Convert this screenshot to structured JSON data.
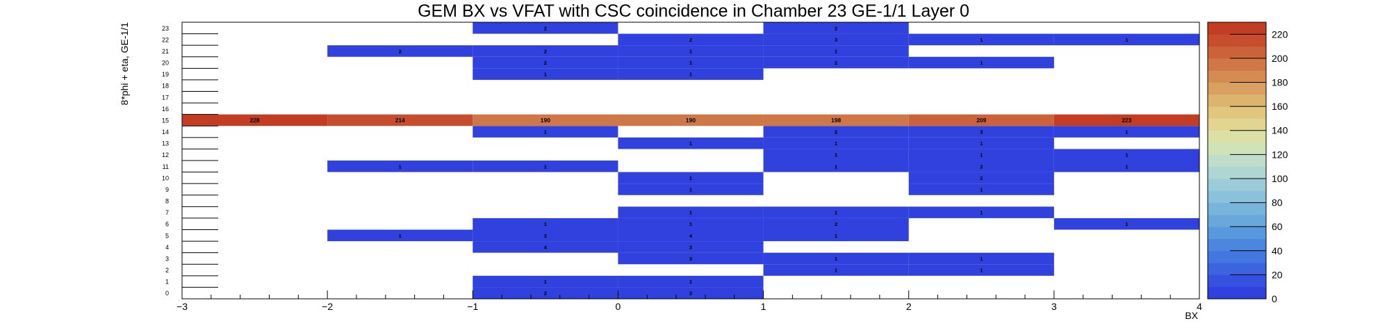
{
  "chart_data": {
    "type": "heatmap",
    "title": "GEM BX vs VFAT with CSC coincidence in Chamber 23 GE-1/1 Layer 0",
    "xlabel": "BX",
    "ylabel": "8*phi + eta, GE-1/1",
    "xlim": [
      -3,
      4
    ],
    "ylim": [
      0,
      24
    ],
    "x_bins": [
      [
        -3,
        -2
      ],
      [
        -2,
        -1
      ],
      [
        -1,
        0
      ],
      [
        0,
        1
      ],
      [
        1,
        2
      ],
      [
        2,
        3
      ],
      [
        3,
        4
      ]
    ],
    "y_bins": [
      0,
      1,
      2,
      3,
      4,
      5,
      6,
      7,
      8,
      9,
      10,
      11,
      12,
      13,
      14,
      15,
      16,
      17,
      18,
      19,
      20,
      21,
      22,
      23
    ],
    "x_ticks": [
      "-3",
      "-2",
      "-1",
      "0",
      "1",
      "2",
      "3",
      "4"
    ],
    "colorbar_ticks": [
      "0",
      "20",
      "40",
      "60",
      "80",
      "100",
      "120",
      "140",
      "160",
      "180",
      "200",
      "220"
    ],
    "zlim": [
      0,
      230
    ],
    "palette": [
      "#3041dd",
      "#3650df",
      "#3c63e0",
      "#4476e0",
      "#4c86df",
      "#5898dc",
      "#6aa7db",
      "#79b5da",
      "#8bc1da",
      "#9dccd8",
      "#aed6d3",
      "#c0ddcb",
      "#d0e2b8",
      "#dde0a4",
      "#e2d590",
      "#e1c77e",
      "#ddb46e",
      "#d9a061",
      "#d48c53",
      "#cf7747",
      "#cb6239",
      "#c64d2e",
      "#c33d22"
    ],
    "cells": [
      {
        "x": -0.5,
        "y": 0,
        "value": 2
      },
      {
        "x": 0.5,
        "y": 0,
        "value": 2
      },
      {
        "x": -0.5,
        "y": 1,
        "value": 1
      },
      {
        "x": 0.5,
        "y": 1,
        "value": 1
      },
      {
        "x": 1.5,
        "y": 2,
        "value": 1
      },
      {
        "x": 2.5,
        "y": 2,
        "value": 1
      },
      {
        "x": 0.5,
        "y": 3,
        "value": 3
      },
      {
        "x": 1.5,
        "y": 3,
        "value": 1
      },
      {
        "x": 2.5,
        "y": 3,
        "value": 1
      },
      {
        "x": -0.5,
        "y": 4,
        "value": 4
      },
      {
        "x": 0.5,
        "y": 4,
        "value": 3
      },
      {
        "x": -1.5,
        "y": 5,
        "value": 1
      },
      {
        "x": -0.5,
        "y": 5,
        "value": 3
      },
      {
        "x": 0.5,
        "y": 5,
        "value": 4
      },
      {
        "x": 1.5,
        "y": 5,
        "value": 1
      },
      {
        "x": -0.5,
        "y": 6,
        "value": 1
      },
      {
        "x": 0.5,
        "y": 6,
        "value": 1
      },
      {
        "x": 1.5,
        "y": 6,
        "value": 2
      },
      {
        "x": 3.5,
        "y": 6,
        "value": 1
      },
      {
        "x": 0.5,
        "y": 7,
        "value": 1
      },
      {
        "x": 1.5,
        "y": 7,
        "value": 1
      },
      {
        "x": 2.5,
        "y": 7,
        "value": 1
      },
      {
        "x": 0.5,
        "y": 9,
        "value": 1
      },
      {
        "x": 2.5,
        "y": 9,
        "value": 1
      },
      {
        "x": 0.5,
        "y": 10,
        "value": 1
      },
      {
        "x": 2.5,
        "y": 10,
        "value": 2
      },
      {
        "x": -1.5,
        "y": 11,
        "value": 1
      },
      {
        "x": -0.5,
        "y": 11,
        "value": 1
      },
      {
        "x": 1.5,
        "y": 11,
        "value": 1
      },
      {
        "x": 2.5,
        "y": 11,
        "value": 2
      },
      {
        "x": 3.5,
        "y": 11,
        "value": 1
      },
      {
        "x": 1.5,
        "y": 12,
        "value": 1
      },
      {
        "x": 2.5,
        "y": 12,
        "value": 1
      },
      {
        "x": 3.5,
        "y": 12,
        "value": 1
      },
      {
        "x": 0.5,
        "y": 13,
        "value": 1
      },
      {
        "x": 1.5,
        "y": 13,
        "value": 1
      },
      {
        "x": 2.5,
        "y": 13,
        "value": 1
      },
      {
        "x": -0.5,
        "y": 14,
        "value": 1
      },
      {
        "x": 1.5,
        "y": 14,
        "value": 2
      },
      {
        "x": 2.5,
        "y": 14,
        "value": 3
      },
      {
        "x": 3.5,
        "y": 14,
        "value": 1
      },
      {
        "x": -2.5,
        "y": 15,
        "value": 228
      },
      {
        "x": -1.5,
        "y": 15,
        "value": 214
      },
      {
        "x": -0.5,
        "y": 15,
        "value": 190
      },
      {
        "x": 0.5,
        "y": 15,
        "value": 190
      },
      {
        "x": 1.5,
        "y": 15,
        "value": 198
      },
      {
        "x": 2.5,
        "y": 15,
        "value": 209
      },
      {
        "x": 3.5,
        "y": 15,
        "value": 223
      },
      {
        "x": -0.5,
        "y": 19,
        "value": 1
      },
      {
        "x": 0.5,
        "y": 19,
        "value": 1
      },
      {
        "x": -0.5,
        "y": 20,
        "value": 2
      },
      {
        "x": 0.5,
        "y": 20,
        "value": 1
      },
      {
        "x": 1.5,
        "y": 20,
        "value": 2
      },
      {
        "x": 2.5,
        "y": 20,
        "value": 1
      },
      {
        "x": -1.5,
        "y": 21,
        "value": 2
      },
      {
        "x": -0.5,
        "y": 21,
        "value": 2
      },
      {
        "x": 0.5,
        "y": 21,
        "value": 1
      },
      {
        "x": 1.5,
        "y": 21,
        "value": 1
      },
      {
        "x": 0.5,
        "y": 22,
        "value": 2
      },
      {
        "x": 1.5,
        "y": 22,
        "value": 3
      },
      {
        "x": 2.5,
        "y": 22,
        "value": 1
      },
      {
        "x": 3.5,
        "y": 22,
        "value": 1
      },
      {
        "x": -0.5,
        "y": 23,
        "value": 2
      },
      {
        "x": 1.5,
        "y": 23,
        "value": 2
      }
    ]
  }
}
